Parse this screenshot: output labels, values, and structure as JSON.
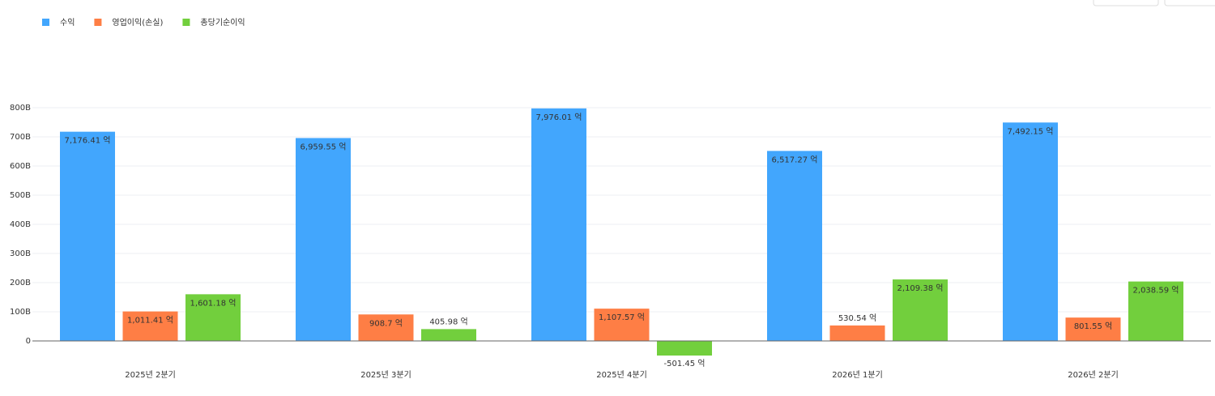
{
  "chart_data": {
    "type": "bar",
    "categories": [
      "2025년 2분기",
      "2025년 3분기",
      "2025년 4분기",
      "2026년 1분기",
      "2026년 2분기"
    ],
    "series": [
      {
        "name": "수익",
        "color": "#42a6fd",
        "values": [
          717.641,
          695.955,
          797.601,
          651.727,
          749.215
        ],
        "value_labels": [
          "7,176.41 억",
          "6,959.55 억",
          "7,976.01 억",
          "6,517.27 억",
          "7,492.15 억"
        ]
      },
      {
        "name": "영업이익(손실)",
        "color": "#fe7e45",
        "values": [
          101.141,
          90.87,
          110.757,
          53.054,
          80.155
        ],
        "value_labels": [
          "1,011.41 억",
          "908.7 억",
          "1,107.57 억",
          "530.54 억",
          "801.55 억"
        ]
      },
      {
        "name": "총당기순이익",
        "color": "#72cf3d",
        "values": [
          160.118,
          40.598,
          -50.145,
          210.938,
          203.859
        ],
        "value_labels": [
          "1,601.18 억",
          "405.98 억",
          "-501.45 억",
          "2,109.38 억",
          "2,038.59 억"
        ]
      }
    ],
    "ylim": [
      -60,
      800
    ],
    "yticks": [
      0,
      {
        "value": 100,
        "label": "100B"
      },
      {
        "value": 200,
        "label": "200B"
      },
      {
        "value": 300,
        "label": "300B"
      },
      {
        "value": 400,
        "label": "400B"
      },
      {
        "value": 500,
        "label": "500B"
      },
      {
        "value": 600,
        "label": "600B"
      },
      {
        "value": 700,
        "label": "700B"
      },
      {
        "value": 800,
        "label": "800B"
      }
    ],
    "grid": true,
    "legend": "top-left"
  }
}
